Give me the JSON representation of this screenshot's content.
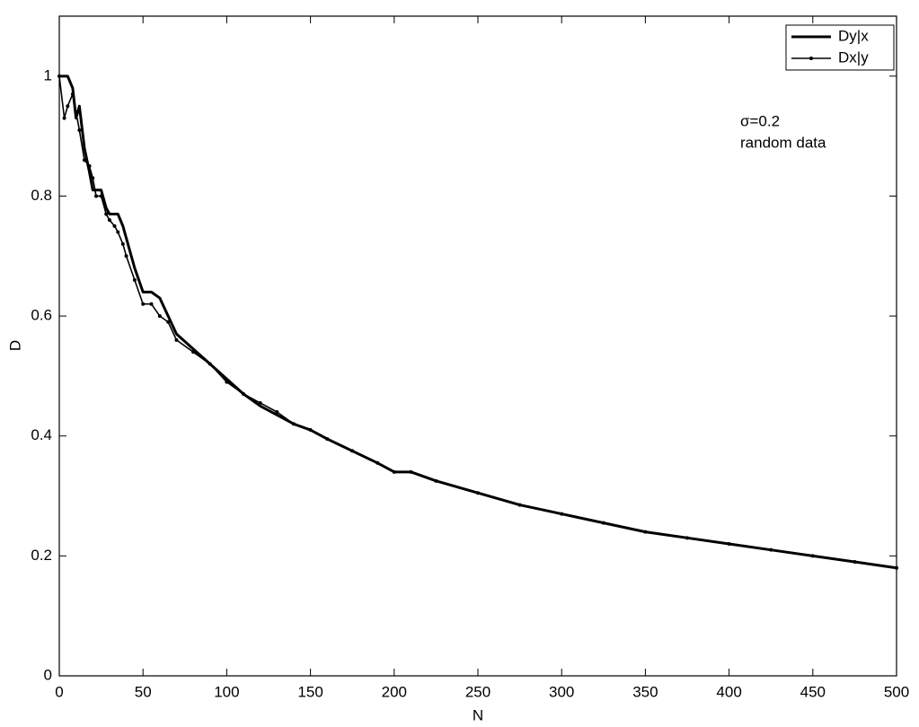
{
  "chart_data": {
    "type": "line",
    "x_label": "N",
    "y_label": "D",
    "annotations": [
      "σ=0.2",
      "random data"
    ],
    "x": [
      0,
      3,
      5,
      8,
      10,
      12,
      15,
      18,
      20,
      22,
      25,
      28,
      30,
      33,
      35,
      38,
      40,
      45,
      50,
      55,
      60,
      65,
      70,
      80,
      90,
      100,
      110,
      120,
      130,
      140,
      150,
      160,
      175,
      190,
      200,
      210,
      225,
      250,
      275,
      300,
      325,
      350,
      375,
      400,
      425,
      450,
      475,
      500
    ],
    "series": [
      {
        "name": "Dy|x",
        "color": "#000000",
        "values": [
          1.0,
          1.0,
          1.0,
          0.98,
          0.93,
          0.95,
          0.88,
          0.84,
          0.81,
          0.81,
          0.81,
          0.78,
          0.77,
          0.77,
          0.77,
          0.75,
          0.73,
          0.68,
          0.64,
          0.64,
          0.63,
          0.6,
          0.57,
          0.545,
          0.52,
          0.495,
          0.47,
          0.45,
          0.435,
          0.42,
          0.41,
          0.395,
          0.375,
          0.355,
          0.34,
          0.34,
          0.325,
          0.305,
          0.285,
          0.27,
          0.255,
          0.24,
          0.23,
          0.22,
          0.21,
          0.2,
          0.19,
          0.18
        ]
      },
      {
        "name": "Dx|y",
        "color": "#000000",
        "values": [
          1.0,
          0.93,
          0.95,
          0.97,
          0.94,
          0.91,
          0.86,
          0.85,
          0.83,
          0.8,
          0.8,
          0.77,
          0.76,
          0.75,
          0.74,
          0.72,
          0.7,
          0.66,
          0.62,
          0.62,
          0.6,
          0.59,
          0.56,
          0.54,
          0.52,
          0.49,
          0.47,
          0.455,
          0.44,
          0.42,
          0.41,
          0.395,
          0.375,
          0.355,
          0.34,
          0.34,
          0.325,
          0.305,
          0.285,
          0.27,
          0.255,
          0.24,
          0.23,
          0.22,
          0.21,
          0.2,
          0.19,
          0.18
        ]
      }
    ],
    "xlim": [
      0,
      500
    ],
    "xticks": [
      0,
      50,
      100,
      150,
      200,
      250,
      300,
      350,
      400,
      450,
      500
    ],
    "ylim": [
      0,
      1.1
    ],
    "yticks": [
      0,
      0.2,
      0.4,
      0.6,
      0.8,
      1
    ],
    "legend": "upper right",
    "grid": false
  }
}
